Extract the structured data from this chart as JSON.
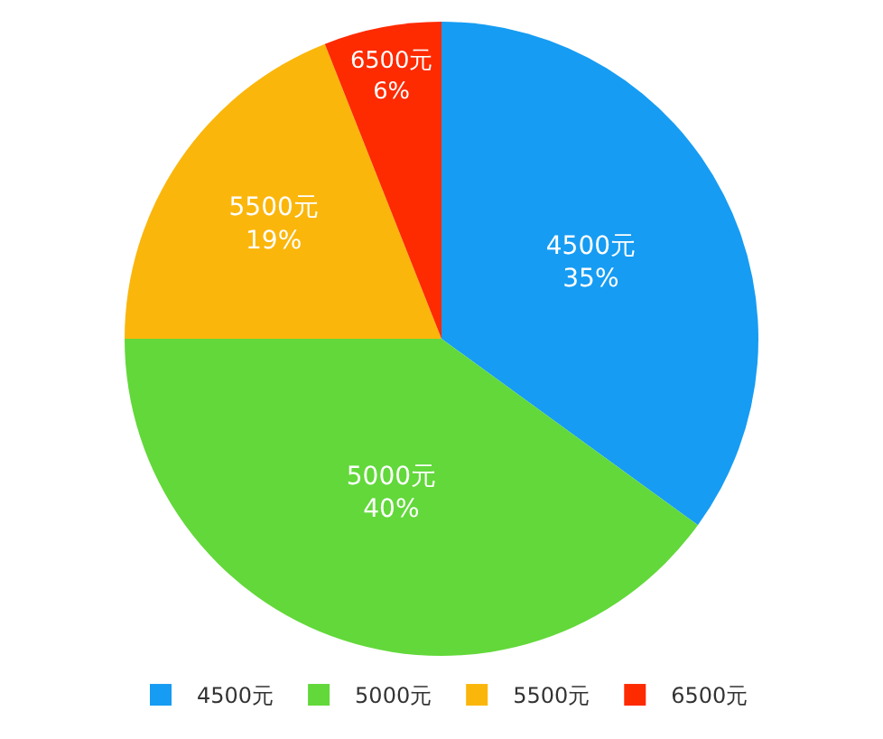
{
  "chart_data": {
    "type": "pie",
    "categories": [
      "4500元",
      "5000元",
      "5500元",
      "6500元"
    ],
    "values": [
      35,
      40,
      19,
      6
    ],
    "value_labels": [
      "35%",
      "40%",
      "19%",
      "6%"
    ],
    "colors": [
      "#169cf3",
      "#62d83a",
      "#fbb60b",
      "#fe2a00"
    ],
    "legend": "bottom"
  }
}
